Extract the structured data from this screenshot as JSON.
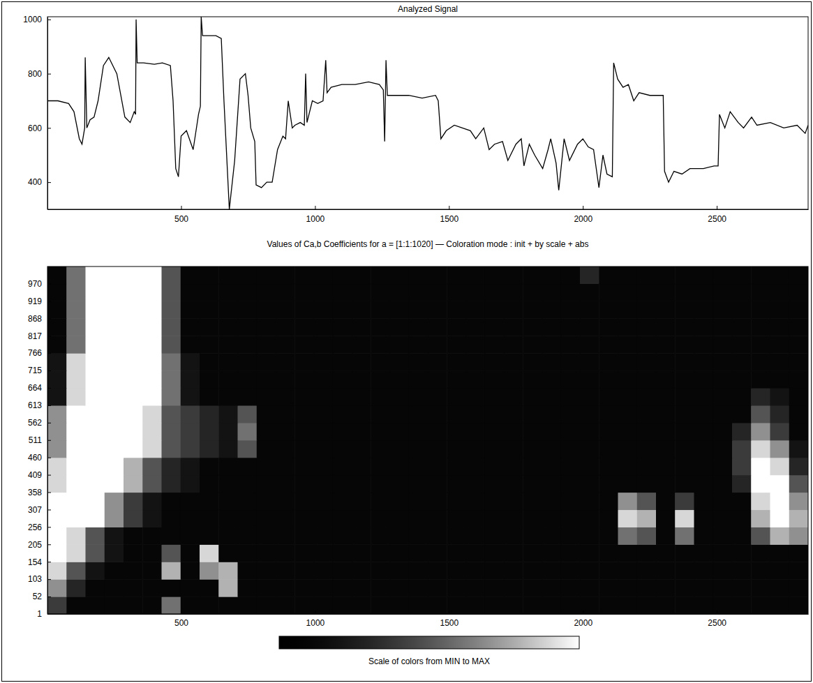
{
  "chart_data": [
    {
      "type": "line",
      "title": "Analyzed Signal",
      "x": [
        1,
        40,
        80,
        100,
        120,
        130,
        140,
        142,
        148,
        160,
        175,
        190,
        210,
        230,
        260,
        290,
        310,
        325,
        330,
        332,
        336,
        360,
        400,
        430,
        460,
        470,
        480,
        490,
        500,
        520,
        545,
        565,
        572,
        575,
        580,
        600,
        630,
        650,
        660,
        680,
        700,
        720,
        740,
        750,
        760,
        775,
        780,
        800,
        820,
        840,
        860,
        880,
        890,
        900,
        915,
        925,
        945,
        960,
        965,
        970,
        990,
        1010,
        1030,
        1040,
        1045,
        1060,
        1100,
        1150,
        1200,
        1240,
        1255,
        1260,
        1265,
        1270,
        1300,
        1350,
        1400,
        1450,
        1460,
        1470,
        1490,
        1520,
        1550,
        1580,
        1600,
        1630,
        1650,
        1670,
        1700,
        1720,
        1750,
        1770,
        1780,
        1800,
        1820,
        1850,
        1870,
        1880,
        1900,
        1910,
        1930,
        1950,
        1980,
        2000,
        2020,
        2040,
        2060,
        2075,
        2090,
        2110,
        2115,
        2130,
        2150,
        2170,
        2190,
        2210,
        2250,
        2300,
        2305,
        2320,
        2340,
        2370,
        2400,
        2450,
        2490,
        2505,
        2510,
        2530,
        2550,
        2580,
        2600,
        2630,
        2650,
        2700,
        2750,
        2800,
        2830,
        2841
      ],
      "series": [
        {
          "color": "#000000",
          "values": [
            700,
            700,
            690,
            660,
            560,
            540,
            600,
            860,
            600,
            630,
            640,
            700,
            830,
            860,
            800,
            640,
            620,
            660,
            650,
            1000,
            840,
            840,
            835,
            840,
            830,
            700,
            450,
            420,
            570,
            590,
            520,
            650,
            680,
            1010,
            940,
            940,
            940,
            930,
            700,
            300,
            480,
            780,
            800,
            720,
            600,
            550,
            390,
            380,
            400,
            400,
            520,
            570,
            560,
            700,
            600,
            610,
            620,
            610,
            800,
            620,
            700,
            690,
            700,
            850,
            730,
            750,
            760,
            760,
            770,
            760,
            740,
            550,
            850,
            720,
            720,
            720,
            710,
            720,
            700,
            560,
            590,
            610,
            600,
            590,
            560,
            600,
            520,
            540,
            550,
            480,
            540,
            560,
            460,
            540,
            500,
            450,
            520,
            560,
            470,
            370,
            560,
            480,
            540,
            560,
            530,
            520,
            380,
            500,
            430,
            420,
            840,
            780,
            750,
            760,
            700,
            730,
            720,
            720,
            440,
            400,
            440,
            430,
            450,
            450,
            460,
            460,
            650,
            600,
            660,
            620,
            600,
            640,
            610,
            620,
            600,
            610,
            580,
            610
          ]
        }
      ],
      "xlim": [
        1,
        2841
      ],
      "ylim": [
        300,
        1010
      ],
      "xticks": [
        500,
        1000,
        1500,
        2000,
        2500
      ],
      "yticks": [
        400,
        600,
        800,
        1000
      ]
    },
    {
      "type": "heatmap",
      "title": "Values of Ca,b Coefficients for a = [1:1:1020] — Coloration mode : init + by scale + abs",
      "x_edges": [
        1,
        72,
        143,
        214,
        285,
        356,
        427,
        498,
        569,
        640,
        711,
        782,
        853,
        924,
        995,
        1066,
        1137,
        1208,
        1279,
        1350,
        1421,
        1492,
        1563,
        1634,
        1705,
        1776,
        1847,
        1918,
        1989,
        2060,
        2131,
        2202,
        2273,
        2344,
        2415,
        2486,
        2557,
        2628,
        2699,
        2770,
        2841
      ],
      "y_edges": [
        1,
        52,
        103,
        154,
        205,
        256,
        307,
        358,
        409,
        460,
        511,
        562,
        613,
        664,
        715,
        766,
        817,
        868,
        919,
        970,
        1020
      ],
      "cells": [
        [
          4,
          1,
          1,
          1,
          1,
          1,
          6,
          1,
          1,
          1,
          1,
          1,
          1,
          1,
          1,
          1,
          1,
          1,
          1,
          1,
          1,
          1,
          1,
          1,
          1,
          1,
          1,
          1,
          1,
          1,
          1,
          1,
          1,
          1,
          1,
          1,
          1,
          1,
          1,
          1
        ],
        [
          7,
          3,
          1,
          1,
          1,
          1,
          1,
          1,
          1,
          8,
          1,
          1,
          1,
          1,
          1,
          1,
          1,
          1,
          1,
          1,
          1,
          1,
          1,
          1,
          1,
          1,
          1,
          1,
          1,
          1,
          1,
          1,
          1,
          1,
          1,
          1,
          1,
          1,
          1,
          1
        ],
        [
          9,
          5,
          2,
          1,
          1,
          1,
          8,
          1,
          7,
          8,
          1,
          1,
          1,
          1,
          1,
          1,
          1,
          1,
          1,
          1,
          1,
          1,
          1,
          1,
          1,
          1,
          1,
          1,
          1,
          1,
          1,
          1,
          1,
          1,
          1,
          1,
          1,
          1,
          1,
          1
        ],
        [
          10,
          9,
          5,
          2,
          1,
          1,
          5,
          1,
          9,
          1,
          1,
          1,
          1,
          1,
          1,
          1,
          1,
          1,
          1,
          1,
          1,
          1,
          1,
          1,
          1,
          1,
          1,
          1,
          1,
          1,
          1,
          1,
          1,
          1,
          1,
          1,
          1,
          1,
          1,
          1
        ],
        [
          10,
          9,
          5,
          2,
          1,
          1,
          1,
          1,
          1,
          1,
          1,
          1,
          1,
          1,
          1,
          1,
          1,
          1,
          1,
          1,
          1,
          1,
          1,
          1,
          1,
          1,
          1,
          1,
          1,
          1,
          6,
          5,
          1,
          6,
          1,
          1,
          1,
          5,
          8,
          7
        ],
        [
          10,
          10,
          10,
          7,
          4,
          2,
          1,
          1,
          1,
          1,
          1,
          1,
          1,
          1,
          1,
          1,
          1,
          1,
          1,
          1,
          1,
          1,
          1,
          1,
          1,
          1,
          1,
          1,
          1,
          1,
          9,
          8,
          1,
          9,
          1,
          1,
          1,
          8,
          10,
          8
        ],
        [
          10,
          10,
          10,
          7,
          4,
          2,
          1,
          1,
          1,
          1,
          1,
          1,
          1,
          1,
          1,
          1,
          1,
          1,
          1,
          1,
          1,
          1,
          1,
          1,
          1,
          1,
          1,
          1,
          1,
          1,
          7,
          5,
          1,
          4,
          1,
          1,
          1,
          9,
          10,
          7
        ],
        [
          9,
          10,
          10,
          10,
          8,
          5,
          3,
          2,
          1,
          1,
          1,
          1,
          1,
          1,
          1,
          1,
          1,
          1,
          1,
          1,
          1,
          1,
          1,
          1,
          1,
          1,
          1,
          1,
          1,
          1,
          1,
          1,
          1,
          1,
          1,
          1,
          3,
          10,
          10,
          5
        ],
        [
          9,
          10,
          10,
          10,
          8,
          5,
          3,
          2,
          1,
          1,
          1,
          1,
          1,
          1,
          1,
          1,
          1,
          1,
          1,
          1,
          1,
          1,
          1,
          1,
          1,
          1,
          1,
          1,
          1,
          1,
          1,
          1,
          1,
          1,
          1,
          1,
          4,
          10,
          9,
          3
        ],
        [
          7,
          10,
          10,
          10,
          10,
          9,
          5,
          4,
          3,
          2,
          5,
          1,
          1,
          1,
          1,
          1,
          1,
          1,
          1,
          1,
          1,
          1,
          1,
          1,
          1,
          1,
          1,
          1,
          1,
          1,
          1,
          1,
          1,
          1,
          1,
          1,
          4,
          9,
          7,
          2
        ],
        [
          7,
          10,
          10,
          10,
          10,
          9,
          5,
          4,
          3,
          2,
          6,
          1,
          1,
          1,
          1,
          1,
          1,
          1,
          1,
          1,
          1,
          1,
          1,
          1,
          1,
          1,
          1,
          1,
          1,
          1,
          1,
          1,
          1,
          1,
          1,
          1,
          3,
          7,
          4,
          1
        ],
        [
          7,
          10,
          10,
          10,
          10,
          9,
          5,
          4,
          3,
          2,
          5,
          1,
          1,
          1,
          1,
          1,
          1,
          1,
          1,
          1,
          1,
          1,
          1,
          1,
          1,
          1,
          1,
          1,
          1,
          1,
          1,
          1,
          1,
          1,
          1,
          1,
          1,
          5,
          3,
          1
        ],
        [
          2,
          9,
          10,
          10,
          10,
          10,
          6,
          2,
          1,
          1,
          1,
          1,
          1,
          1,
          1,
          1,
          1,
          1,
          1,
          1,
          1,
          1,
          1,
          1,
          1,
          1,
          1,
          1,
          1,
          1,
          1,
          1,
          1,
          1,
          1,
          1,
          1,
          3,
          2,
          1
        ],
        [
          2,
          9,
          10,
          10,
          10,
          10,
          6,
          2,
          1,
          1,
          1,
          1,
          1,
          1,
          1,
          1,
          1,
          1,
          1,
          1,
          1,
          1,
          1,
          1,
          1,
          1,
          1,
          1,
          1,
          1,
          1,
          1,
          1,
          1,
          1,
          1,
          1,
          1,
          1,
          1
        ],
        [
          2,
          9,
          10,
          10,
          10,
          10,
          6,
          2,
          1,
          1,
          1,
          1,
          1,
          1,
          1,
          1,
          1,
          1,
          1,
          1,
          1,
          1,
          1,
          1,
          1,
          1,
          1,
          1,
          1,
          1,
          1,
          1,
          1,
          1,
          1,
          1,
          1,
          1,
          1,
          1
        ],
        [
          1,
          6,
          10,
          10,
          10,
          10,
          5,
          1,
          1,
          1,
          1,
          1,
          1,
          1,
          1,
          1,
          1,
          1,
          1,
          1,
          1,
          1,
          1,
          1,
          1,
          1,
          1,
          1,
          1,
          1,
          1,
          1,
          1,
          1,
          1,
          1,
          1,
          1,
          1,
          1
        ],
        [
          1,
          6,
          10,
          10,
          10,
          10,
          5,
          1,
          1,
          1,
          1,
          1,
          1,
          1,
          1,
          1,
          1,
          1,
          1,
          1,
          1,
          1,
          1,
          1,
          1,
          1,
          1,
          1,
          1,
          1,
          1,
          1,
          1,
          1,
          1,
          1,
          1,
          1,
          1,
          1
        ],
        [
          1,
          6,
          10,
          10,
          10,
          10,
          5,
          1,
          1,
          1,
          1,
          1,
          1,
          1,
          1,
          1,
          1,
          1,
          1,
          1,
          1,
          1,
          1,
          1,
          1,
          1,
          1,
          1,
          1,
          1,
          1,
          1,
          1,
          1,
          1,
          1,
          1,
          1,
          1,
          1
        ],
        [
          1,
          6,
          10,
          10,
          10,
          10,
          5,
          1,
          1,
          1,
          1,
          1,
          1,
          1,
          1,
          1,
          1,
          1,
          1,
          1,
          1,
          1,
          1,
          1,
          1,
          1,
          1,
          1,
          1,
          1,
          1,
          1,
          1,
          1,
          1,
          1,
          1,
          1,
          1,
          1
        ],
        [
          1,
          6,
          10,
          10,
          10,
          10,
          5,
          1,
          1,
          1,
          1,
          1,
          1,
          1,
          1,
          1,
          1,
          1,
          1,
          1,
          1,
          1,
          1,
          1,
          1,
          1,
          1,
          1,
          3,
          1,
          1,
          1,
          1,
          1,
          1,
          1,
          1,
          1,
          1,
          1
        ]
      ],
      "xlim": [
        1,
        2841
      ],
      "ylim": [
        1,
        1020
      ],
      "xticks": [
        500,
        1000,
        1500,
        2000,
        2500
      ],
      "yticks": [
        1,
        52,
        103,
        154,
        205,
        256,
        307,
        358,
        409,
        460,
        511,
        562,
        613,
        664,
        715,
        766,
        817,
        868,
        919,
        970
      ],
      "colorbar": {
        "label": "Scale of colors from MIN to MAX",
        "range": [
          0,
          10
        ]
      }
    }
  ]
}
